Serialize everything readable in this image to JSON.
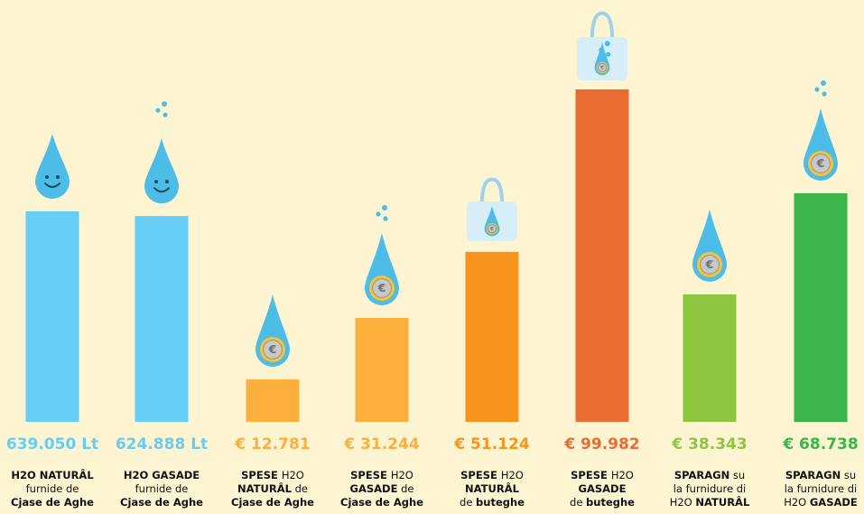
{
  "colors": {
    "background": "#fdf4d2",
    "water": "#66cdf5",
    "drop": "#4dbde8",
    "orange_light": "#fbb03b",
    "orange": "#f7941d",
    "orange_dark": "#e96c32",
    "green_light": "#8dc63f",
    "green": "#39b54a"
  },
  "chart_data": {
    "type": "bar",
    "title": "",
    "xlabel": "",
    "ylabel": "",
    "grid": false,
    "bars": [
      {
        "value": 639050,
        "unit": "Lt",
        "label": "639.050 Lt",
        "caption": [
          [
            [
              "H2O NATURÂL",
              true
            ]
          ],
          [
            [
              "furnide de",
              false
            ]
          ],
          [
            [
              "Cjase de Aghe",
              true
            ]
          ]
        ],
        "color": "#66cdf5",
        "icon": "smiling-water-drop-icon"
      },
      {
        "value": 624888,
        "unit": "Lt",
        "label": "624.888 Lt",
        "caption": [
          [
            [
              "H2O GASADE",
              true
            ]
          ],
          [
            [
              "furnide de",
              false
            ]
          ],
          [
            [
              "Cjase de Aghe",
              true
            ]
          ]
        ],
        "color": "#66cdf5",
        "icon": "sparkling-water-drop-icon"
      },
      {
        "value": 12781,
        "unit": "€",
        "label": "€ 12.781",
        "caption": [
          [
            [
              "SPESE ",
              true
            ],
            [
              "H2O",
              false
            ]
          ],
          [
            [
              "NATURÂL",
              true
            ],
            [
              " de",
              false
            ]
          ],
          [
            [
              "Cjase de Aghe",
              true
            ]
          ]
        ],
        "color": "#fbb03b",
        "icon": "euro-drop-icon"
      },
      {
        "value": 31244,
        "unit": "€",
        "label": "€ 31.244",
        "caption": [
          [
            [
              "SPESE ",
              true
            ],
            [
              "H2O",
              false
            ]
          ],
          [
            [
              "GASADE",
              true
            ],
            [
              " de",
              false
            ]
          ],
          [
            [
              "Cjase de Aghe",
              true
            ]
          ]
        ],
        "color": "#fbb03b",
        "icon": "sparkling-euro-drop-icon"
      },
      {
        "value": 51124,
        "unit": "€",
        "label": "€ 51.124",
        "caption": [
          [
            [
              "SPESE ",
              true
            ],
            [
              "H2O",
              false
            ]
          ],
          [
            [
              "NATURÂL",
              true
            ]
          ],
          [
            [
              "de ",
              false
            ],
            [
              "buteghe",
              true
            ]
          ]
        ],
        "color": "#f7941d",
        "icon": "shopping-bag-icon"
      },
      {
        "value": 99982,
        "unit": "€",
        "label": "€ 99.982",
        "caption": [
          [
            [
              "SPESE ",
              true
            ],
            [
              "H2O",
              false
            ]
          ],
          [
            [
              "GASADE",
              true
            ]
          ],
          [
            [
              "de ",
              false
            ],
            [
              "buteghe",
              true
            ]
          ]
        ],
        "color": "#e96c32",
        "icon": "sparkling-shopping-bag-icon"
      },
      {
        "value": 38343,
        "unit": "€",
        "label": "€ 38.343",
        "caption": [
          [
            [
              "SPARAGN",
              true
            ],
            [
              " su",
              false
            ]
          ],
          [
            [
              "la furnidure di",
              false
            ]
          ],
          [
            [
              "H2O ",
              false
            ],
            [
              "NATURÂL",
              true
            ]
          ]
        ],
        "color": "#8dc63f",
        "icon": "euro-drop-icon"
      },
      {
        "value": 68738,
        "unit": "€",
        "label": "€ 68.738",
        "caption": [
          [
            [
              "SPARAGN",
              true
            ],
            [
              " su",
              false
            ]
          ],
          [
            [
              "la furnidure di",
              false
            ]
          ],
          [
            [
              "H2O ",
              false
            ],
            [
              "GASADE",
              true
            ]
          ]
        ],
        "color": "#39b54a",
        "icon": "sparkling-euro-drop-icon"
      }
    ]
  }
}
